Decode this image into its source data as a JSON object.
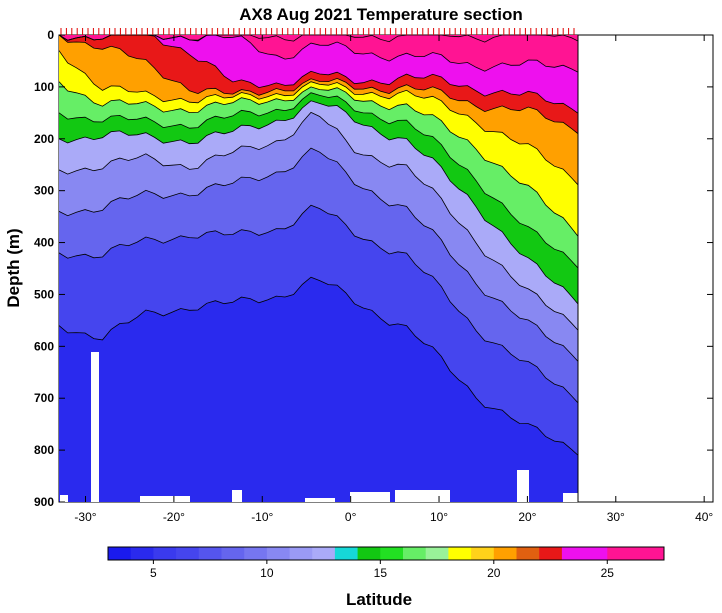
{
  "chart_data": {
    "type": "heatmap",
    "title": "AX8 Aug 2021 Temperature section",
    "xlabel": "",
    "ylabel": "Depth (m)",
    "colorbar_label": "Latitude",
    "x_ticks": [
      "-30°",
      "-20°",
      "-10°",
      "0°",
      "10°",
      "20°",
      "30°",
      "40°"
    ],
    "x_tick_values": [
      -30,
      -20,
      -10,
      0,
      10,
      20,
      30,
      40
    ],
    "y_ticks": [
      "0",
      "100",
      "200",
      "300",
      "400",
      "500",
      "600",
      "700",
      "800",
      "900"
    ],
    "y_tick_values": [
      0,
      100,
      200,
      300,
      400,
      500,
      600,
      700,
      800,
      900
    ],
    "xlim": [
      -33,
      41
    ],
    "ylim": [
      900,
      0
    ],
    "data_xlim": [
      -33,
      26
    ],
    "colorbar_ticks": [
      "5",
      "10",
      "15",
      "20",
      "25"
    ],
    "colorbar_tick_values": [
      5,
      10,
      15,
      20,
      25
    ],
    "colorbar_range": [
      3,
      27.5
    ],
    "colorbar_levels": [
      3,
      4,
      5,
      6,
      7,
      8,
      9,
      10,
      11,
      12,
      13,
      14,
      15,
      16,
      17,
      18,
      19,
      20,
      21,
      22,
      23,
      25,
      27.5
    ],
    "colorbar_colors": [
      "#1a1aee",
      "#2a2aee",
      "#3a3aee",
      "#4545ee",
      "#5555ee",
      "#6565ee",
      "#7676f0",
      "#8888f2",
      "#9a9af5",
      "#aaaaf8",
      "#16d8d8",
      "#12c812",
      "#22e022",
      "#66ee66",
      "#99f299",
      "#ffff00",
      "#ffd21a",
      "#ffa000",
      "#e06010",
      "#e81818",
      "#ee10ee",
      "#ff1493"
    ],
    "isotherm_depths": [
      {
        "temp": 27,
        "depth": [
          0,
          0,
          0,
          0,
          0,
          0,
          0,
          0,
          0,
          0,
          0,
          0
        ]
      },
      {
        "temp": 25,
        "depth": [
          0,
          0,
          0,
          0,
          10,
          40,
          20,
          30,
          40,
          55,
          60,
          60
        ]
      },
      {
        "temp": 23,
        "depth": [
          0,
          0,
          0,
          30,
          100,
          90,
          75,
          90,
          80,
          100,
          120,
          140
        ]
      },
      {
        "temp": 21,
        "depth": [
          0,
          20,
          60,
          100,
          120,
          100,
          90,
          100,
          100,
          130,
          150,
          180
        ]
      },
      {
        "temp": 19,
        "depth": [
          30,
          100,
          120,
          120,
          125,
          110,
          95,
          110,
          110,
          160,
          220,
          280
        ]
      },
      {
        "temp": 17,
        "depth": [
          90,
          130,
          140,
          140,
          135,
          120,
          105,
          120,
          135,
          210,
          300,
          380
        ]
      },
      {
        "temp": 15,
        "depth": [
          150,
          160,
          170,
          170,
          160,
          140,
          115,
          140,
          165,
          270,
          380,
          440
        ]
      },
      {
        "temp": 13,
        "depth": [
          200,
          190,
          200,
          200,
          190,
          160,
          130,
          160,
          200,
          320,
          440,
          510
        ]
      },
      {
        "temp": 11,
        "depth": [
          260,
          250,
          240,
          250,
          230,
          200,
          150,
          220,
          250,
          390,
          500,
          560
        ]
      },
      {
        "temp": 9,
        "depth": [
          340,
          330,
          310,
          300,
          290,
          260,
          220,
          280,
          330,
          470,
          560,
          620
        ]
      },
      {
        "temp": 7,
        "depth": [
          420,
          420,
          400,
          380,
          390,
          370,
          330,
          380,
          420,
          560,
          640,
          700
        ]
      },
      {
        "temp": 5,
        "depth": [
          560,
          580,
          540,
          520,
          520,
          500,
          470,
          510,
          560,
          690,
          760,
          800
        ]
      }
    ],
    "isotherm_lat": [
      -33,
      -28,
      -23,
      -18,
      -13,
      -8,
      -4,
      0,
      6,
      14,
      20,
      26
    ],
    "bathymetry_note": "white seafloor patches near 900 m"
  }
}
